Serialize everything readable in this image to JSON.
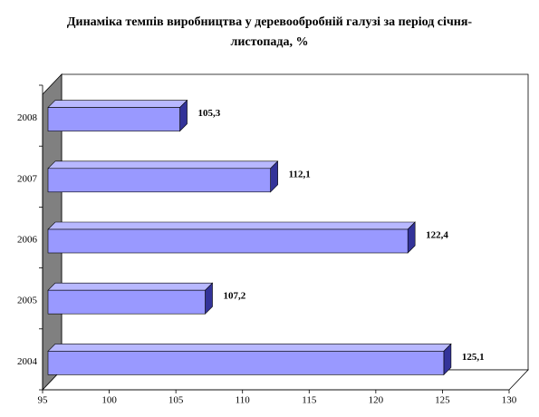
{
  "chart_data": {
    "type": "bar3d-horizontal",
    "title": "Динаміка темпів виробництва у деревообробній галузі за період січня-листопада, %",
    "categories": [
      "2004",
      "2005",
      "2006",
      "2007",
      "2008"
    ],
    "values": [
      125.1,
      107.2,
      122.4,
      112.1,
      105.3
    ],
    "value_labels": [
      "125,1",
      "107,2",
      "122,4",
      "112,1",
      "105,3"
    ],
    "color": "#9999ff",
    "xlim": [
      95,
      130
    ],
    "xticks": [
      95,
      100,
      105,
      110,
      115,
      120,
      125,
      130
    ]
  }
}
